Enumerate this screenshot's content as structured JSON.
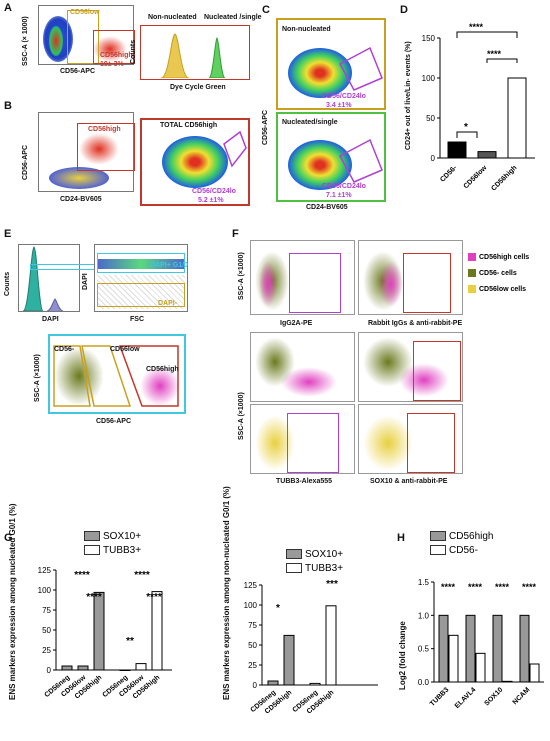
{
  "panels": {
    "A": {
      "label": "A",
      "yaxis": "SSC-A (× 1000)",
      "xaxis": "CD56-APC",
      "gate_low": "CD56low",
      "gate_high": "CD56high",
      "gate_pct": "19± 3%",
      "hist_title_left": "Non-nucleated",
      "hist_title_right": "Nucleated /single",
      "hist_y": "Counts",
      "hist_x": "Dye Cycle Green"
    },
    "B": {
      "label": "B",
      "yaxis": "CD56-APC",
      "xaxis": "CD24-BV605",
      "gate_high": "CD56high",
      "total": "TOTAL CD56high",
      "sub": "CD56/CD24lo",
      "pct": "5.2 ±1%"
    },
    "C": {
      "label": "C",
      "top_title": "Non-nucleated",
      "top_sub": "CD56/CD24lo",
      "top_pct": "3.4 ±1%",
      "bot_title": "Nucleated/single",
      "bot_sub": "CD56/CD24lo",
      "bot_pct": "7.1 ±1%",
      "yaxis": "CD56-APC",
      "xaxis": "CD24-BV605"
    },
    "D": {
      "label": "D",
      "yaxis": "CD24+ out of live/Lin- events (%)",
      "star_big": "****",
      "star_mid": "****",
      "star_small": "*",
      "categories": [
        "CD56-",
        "CD56low",
        "CD56high"
      ],
      "ticks": [
        "0",
        "50",
        "100",
        "150"
      ]
    },
    "E": {
      "label": "E",
      "counts": "Counts",
      "dapi": "DAPI",
      "dapi_y": "DAPI",
      "fsc": "FSC",
      "dapi_pos": "DAPI+ G1/0",
      "dapi_neg": "DAPI-",
      "cd56_neg": "CD56-",
      "cd56_low": "CD56low",
      "cd56_high": "CD56high",
      "yaxis": "SSC-A (×1000)",
      "xaxis": "CD56-APC"
    },
    "F": {
      "label": "F",
      "yaxis_top": "SSC-A (×1000)",
      "yaxis_bot": "SSC-A (×1000)",
      "x1": "IgG2A-PE",
      "x2": "Rabbit IgGs & anti-rabbit-PE",
      "x3": "TUBB3-Alexa555",
      "x4": "SOX10 & anti-rabbit-PE",
      "legend": [
        "CD56high cells",
        "CD56- cells",
        "CD56low cells"
      ]
    },
    "G": {
      "label": "G",
      "legend": [
        "SOX10+",
        "TUBB3+"
      ],
      "yaxis_left": "ENS markers expression among nucleated G0/1 (%)",
      "yaxis_right": "ENS markers expression among non-nucleated G0/1 (%)",
      "left_cats": [
        "CD56neg",
        "CD56low",
        "CD56high",
        "CD56neg",
        "CD56low",
        "CD56high"
      ],
      "right_cats": [
        "CD56neg",
        "CD56high",
        "CD56neg",
        "CD56high"
      ],
      "stars_left": [
        "****",
        "****",
        "****",
        "****",
        "**"
      ],
      "stars_right": [
        "*",
        "***"
      ],
      "ticks": [
        "0",
        "25",
        "50",
        "75",
        "100",
        "125"
      ]
    },
    "H": {
      "label": "H",
      "legend": [
        "CD56high",
        "CD56-"
      ],
      "yaxis": "Log2 (fold change",
      "categories": [
        "TUBB3",
        "ELAVL4",
        "SOX10",
        "NCAM"
      ],
      "stars": [
        "****",
        "****",
        "****",
        "****"
      ],
      "ticks": [
        "0.0",
        "0.5",
        "1.0",
        "1.5"
      ]
    }
  },
  "colors": {
    "gold": "#c8a020",
    "red": "#c0392b",
    "purple": "#b040d0",
    "green": "#50c040",
    "olive": "#6b7a1f",
    "magenta": "#e040c0",
    "yellow": "#e8d040",
    "cyan": "#40c8e0"
  },
  "chart_data": [
    {
      "type": "bar",
      "categories": [
        "CD56-",
        "CD56low",
        "CD56high"
      ],
      "values": [
        20,
        8,
        100
      ],
      "ylim": [
        0,
        150
      ],
      "ylabel": "CD24+ out of live/Lin- events (%)"
    },
    {
      "type": "bar",
      "categories": [
        "CD56neg",
        "CD56low",
        "CD56high"
      ],
      "series": [
        {
          "name": "SOX10+",
          "values": [
            5,
            5,
            97
          ]
        },
        {
          "name": "TUBB3+",
          "values": [
            0,
            8,
            98
          ]
        }
      ],
      "ylim": [
        0,
        125
      ],
      "ylabel": "ENS markers expression among nucleated G0/1 (%)"
    },
    {
      "type": "bar",
      "categories": [
        "CD56neg",
        "CD56high"
      ],
      "series": [
        {
          "name": "SOX10+",
          "values": [
            5,
            62
          ]
        },
        {
          "name": "TUBB3+",
          "values": [
            2,
            99
          ]
        }
      ],
      "ylim": [
        0,
        125
      ],
      "ylabel": "ENS markers expression among non-nucleated G0/1 (%)"
    },
    {
      "type": "bar",
      "categories": [
        "TUBB3",
        "ELAVL4",
        "SOX10",
        "NCAM"
      ],
      "series": [
        {
          "name": "CD56high",
          "values": [
            1.0,
            1.0,
            1.0,
            1.0
          ]
        },
        {
          "name": "CD56-",
          "values": [
            0.7,
            0.43,
            0.01,
            0.27
          ]
        }
      ],
      "ylim": [
        0,
        1.5
      ],
      "ylabel": "Log2 (fold change"
    }
  ]
}
